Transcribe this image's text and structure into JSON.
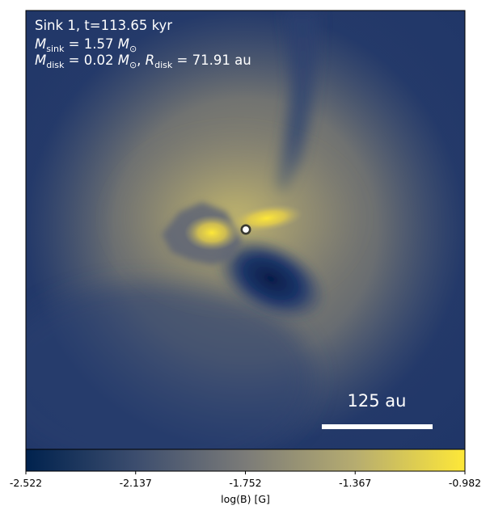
{
  "panel": {
    "sink_line": "Sink 1, t=113.65 kyr",
    "msink_symbol": "M",
    "msink_sub": "sink",
    "msink_value": " = 1.57 ",
    "msun_symbol": "M",
    "msun_sub": "⊙",
    "mdisk_symbol": "M",
    "mdisk_sub": "disk",
    "mdisk_value": " = 0.02 ",
    "mdisk_sun_symbol": "M",
    "mdisk_sun_sub": "⊙",
    "rdisk_sep": ", ",
    "rdisk_symbol": "R",
    "rdisk_sub": "disk",
    "rdisk_value": " = 71.91 au"
  },
  "scalebar": {
    "label": "125 au"
  },
  "colorbar": {
    "label": "log(B) [G]",
    "ticks": [
      "-2.522",
      "-2.137",
      "-1.752",
      "-1.367",
      "-0.982"
    ],
    "cmap": [
      "#00224e",
      "#3c4d6e",
      "#7b7b78",
      "#b6ac70",
      "#fee838"
    ],
    "vmin": -2.522,
    "vmax": -0.982
  }
}
